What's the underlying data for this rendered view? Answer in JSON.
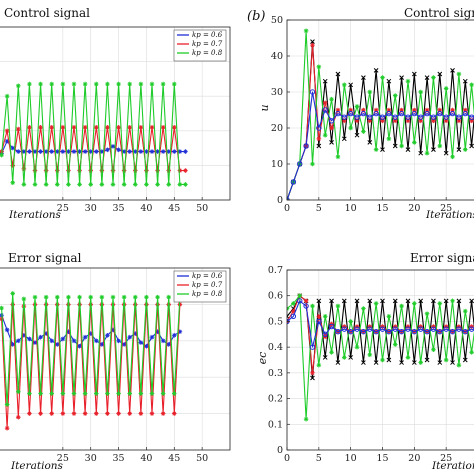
{
  "chart_data": [
    {
      "id": "top-left",
      "type": "line",
      "title": "Control signal",
      "xlabel": "Iterations",
      "ylabel": "",
      "xlim": [
        13,
        55
      ],
      "ylim": [
        0,
        1
      ],
      "xticks": [
        25,
        30,
        35,
        40,
        45,
        50
      ],
      "yticks": [],
      "grid": true,
      "legend": "top-right",
      "series": [
        {
          "name": "kp = 0.6",
          "color": "#1f2fd6",
          "marker": "star",
          "x": [
            14,
            15,
            16,
            17,
            18,
            19,
            20,
            21,
            22,
            23,
            24,
            25,
            26,
            27,
            28,
            29,
            30,
            31,
            32,
            33,
            34,
            35,
            36,
            37,
            38,
            39,
            40,
            41,
            42,
            43,
            44,
            45,
            46,
            47
          ],
          "y": [
            0.27,
            0.34,
            0.3,
            0.28,
            0.28,
            0.28,
            0.28,
            0.28,
            0.28,
            0.28,
            0.28,
            0.28,
            0.28,
            0.28,
            0.28,
            0.28,
            0.28,
            0.28,
            0.28,
            0.29,
            0.31,
            0.29,
            0.28,
            0.28,
            0.28,
            0.28,
            0.28,
            0.28,
            0.28,
            0.28,
            0.28,
            0.28,
            0.28,
            0.28
          ]
        },
        {
          "name": "kp = 0.7",
          "color": "#e8202a",
          "marker": "star",
          "x": [
            14,
            15,
            16,
            17,
            18,
            19,
            20,
            21,
            22,
            23,
            24,
            25,
            26,
            27,
            28,
            29,
            30,
            31,
            32,
            33,
            34,
            35,
            36,
            37,
            38,
            39,
            40,
            41,
            42,
            43,
            44,
            45,
            46,
            47
          ],
          "y": [
            0.28,
            0.4,
            0.2,
            0.41,
            0.18,
            0.42,
            0.17,
            0.42,
            0.17,
            0.42,
            0.17,
            0.42,
            0.17,
            0.42,
            0.17,
            0.42,
            0.17,
            0.42,
            0.17,
            0.42,
            0.17,
            0.42,
            0.17,
            0.42,
            0.17,
            0.42,
            0.17,
            0.42,
            0.17,
            0.42,
            0.17,
            0.42,
            0.17,
            0.17
          ]
        },
        {
          "name": "kp = 0.8",
          "color": "#1fcc2a",
          "marker": "star",
          "x": [
            14,
            15,
            16,
            17,
            18,
            19,
            20,
            21,
            22,
            23,
            24,
            25,
            26,
            27,
            28,
            29,
            30,
            31,
            32,
            33,
            34,
            35,
            36,
            37,
            38,
            39,
            40,
            41,
            42,
            43,
            44,
            45,
            46,
            47
          ],
          "y": [
            0.26,
            0.6,
            0.1,
            0.66,
            0.09,
            0.67,
            0.09,
            0.67,
            0.09,
            0.67,
            0.09,
            0.67,
            0.09,
            0.67,
            0.09,
            0.67,
            0.09,
            0.67,
            0.09,
            0.67,
            0.09,
            0.67,
            0.09,
            0.67,
            0.09,
            0.67,
            0.09,
            0.67,
            0.09,
            0.67,
            0.09,
            0.67,
            0.09,
            0.09
          ]
        }
      ]
    },
    {
      "id": "bottom-left",
      "type": "line",
      "title": "Error signal",
      "xlabel": "Iterations",
      "ylabel": "",
      "xlim": [
        13,
        55
      ],
      "ylim": [
        0,
        1
      ],
      "xticks": [
        25,
        30,
        35,
        40,
        45,
        50
      ],
      "yticks": [],
      "grid": true,
      "legend": "top-right",
      "series": [
        {
          "name": "kp = 0.6",
          "color": "#1f2fd6",
          "marker": "star",
          "x": [
            14,
            15,
            16,
            17,
            18,
            19,
            20,
            21,
            22,
            23,
            24,
            25,
            26,
            27,
            28,
            29,
            30,
            31,
            32,
            33,
            34,
            35,
            36,
            37,
            38,
            39,
            40,
            41,
            42,
            43,
            44,
            45,
            46
          ],
          "y": [
            0.74,
            0.66,
            0.58,
            0.6,
            0.63,
            0.61,
            0.59,
            0.62,
            0.64,
            0.6,
            0.58,
            0.61,
            0.65,
            0.6,
            0.57,
            0.62,
            0.64,
            0.6,
            0.58,
            0.63,
            0.66,
            0.6,
            0.58,
            0.62,
            0.64,
            0.59,
            0.57,
            0.62,
            0.65,
            0.6,
            0.58,
            0.63,
            0.65
          ]
        },
        {
          "name": "kp = 0.7",
          "color": "#e8202a",
          "marker": "star",
          "x": [
            14,
            15,
            16,
            17,
            18,
            19,
            20,
            21,
            22,
            23,
            24,
            25,
            26,
            27,
            28,
            29,
            30,
            31,
            32,
            33,
            34,
            35,
            36,
            37,
            38,
            39,
            40,
            41,
            42,
            43,
            44,
            45,
            46
          ],
          "y": [
            0.72,
            0.12,
            0.8,
            0.18,
            0.79,
            0.2,
            0.8,
            0.2,
            0.8,
            0.2,
            0.8,
            0.2,
            0.8,
            0.2,
            0.8,
            0.2,
            0.8,
            0.2,
            0.8,
            0.2,
            0.8,
            0.2,
            0.8,
            0.2,
            0.8,
            0.2,
            0.8,
            0.2,
            0.8,
            0.2,
            0.8,
            0.2,
            0.8
          ]
        },
        {
          "name": "kp = 0.8",
          "color": "#1fcc2a",
          "marker": "star",
          "x": [
            14,
            15,
            16,
            17,
            18,
            19,
            20,
            21,
            22,
            23,
            24,
            25,
            26,
            27,
            28,
            29,
            30,
            31,
            32,
            33,
            34,
            35,
            36,
            37,
            38,
            39,
            40,
            41,
            42,
            43,
            44,
            45,
            46
          ],
          "y": [
            0.78,
            0.25,
            0.86,
            0.32,
            0.83,
            0.31,
            0.84,
            0.31,
            0.84,
            0.31,
            0.84,
            0.31,
            0.84,
            0.31,
            0.84,
            0.31,
            0.84,
            0.31,
            0.84,
            0.31,
            0.84,
            0.31,
            0.84,
            0.31,
            0.84,
            0.31,
            0.84,
            0.31,
            0.84,
            0.31,
            0.84,
            0.31,
            0.84
          ]
        }
      ]
    },
    {
      "id": "top-right",
      "type": "line",
      "panel_label": "(b)",
      "title": "Control signal",
      "xlabel": "Iterations",
      "ylabel": "u",
      "xlim": [
        0,
        30
      ],
      "ylim": [
        0,
        50
      ],
      "xticks": [
        0,
        5,
        10,
        15,
        20,
        25
      ],
      "yticks": [
        0,
        10,
        20,
        30,
        40,
        50
      ],
      "grid": true,
      "series": [
        {
          "name": "",
          "color": "#000000",
          "marker": "cross",
          "x": [
            0,
            1,
            2,
            3,
            4,
            5,
            6,
            7,
            8,
            9,
            10,
            11,
            12,
            13,
            14,
            15,
            16,
            17,
            18,
            19,
            20,
            21,
            22,
            23,
            24,
            25,
            26,
            27,
            28,
            29,
            30
          ],
          "y": [
            0,
            5,
            10,
            15,
            44,
            15,
            33,
            16,
            35,
            17,
            32,
            18,
            34,
            16,
            36,
            14,
            33,
            15,
            34,
            14,
            35,
            13,
            34,
            14,
            35,
            13,
            36,
            14,
            33,
            15,
            34
          ]
        },
        {
          "name": "",
          "color": "#e8202a",
          "marker": "star",
          "x": [
            0,
            1,
            2,
            3,
            4,
            5,
            6,
            7,
            8,
            9,
            10,
            11,
            12,
            13,
            14,
            15,
            16,
            17,
            18,
            19,
            20,
            21,
            22,
            23,
            24,
            25,
            26,
            27,
            28,
            29,
            30
          ],
          "y": [
            0,
            5,
            10,
            15,
            43,
            17,
            27,
            20,
            25,
            22,
            25,
            22,
            25,
            22,
            25,
            22,
            25,
            22,
            25,
            22,
            25,
            22,
            25,
            22,
            25,
            22,
            25,
            22,
            25,
            22,
            25
          ]
        },
        {
          "name": "",
          "color": "#1fcc2a",
          "marker": "star",
          "x": [
            0,
            1,
            2,
            3,
            4,
            5,
            6,
            7,
            8,
            9,
            10,
            11,
            12,
            13,
            14,
            15,
            16,
            17,
            18,
            19,
            20,
            21,
            22,
            23,
            24,
            25,
            26,
            27,
            28,
            29,
            30
          ],
          "y": [
            0,
            5,
            10,
            47,
            10,
            37,
            18,
            28,
            12,
            32,
            20,
            26,
            19,
            30,
            14,
            34,
            17,
            29,
            15,
            33,
            16,
            30,
            13,
            34,
            15,
            31,
            12,
            35,
            14,
            32,
            13
          ]
        },
        {
          "name": "",
          "color": "#1f2fd6",
          "marker": "circle",
          "x": [
            0,
            1,
            2,
            3,
            4,
            5,
            6,
            7,
            8,
            9,
            10,
            11,
            12,
            13,
            14,
            15,
            16,
            17,
            18,
            19,
            20,
            21,
            22,
            23,
            24,
            25,
            26,
            27,
            28,
            29,
            30
          ],
          "y": [
            0,
            5,
            10,
            15,
            30,
            20,
            25,
            22,
            24,
            23,
            24,
            23,
            24,
            23,
            24,
            23,
            24,
            23,
            24,
            23,
            24,
            23,
            24,
            23,
            24,
            23,
            24,
            23,
            24,
            23,
            24
          ]
        }
      ]
    },
    {
      "id": "bottom-right",
      "type": "line",
      "title": "Error signal",
      "xlabel": "Iterations",
      "ylabel": "ec",
      "xlim": [
        0,
        30
      ],
      "ylim": [
        0,
        0.7
      ],
      "xticks": [
        0,
        5,
        10,
        15,
        20,
        25
      ],
      "yticks": [
        0,
        0.1,
        0.2,
        0.3,
        0.4,
        0.5,
        0.6,
        0.7
      ],
      "grid": true,
      "series": [
        {
          "name": "",
          "color": "#000000",
          "marker": "cross",
          "x": [
            0,
            1,
            2,
            3,
            4,
            5,
            6,
            7,
            8,
            9,
            10,
            11,
            12,
            13,
            14,
            15,
            16,
            17,
            18,
            19,
            20,
            21,
            22,
            23,
            24,
            25,
            26,
            27,
            28,
            29,
            30
          ],
          "y": [
            0.52,
            0.55,
            0.6,
            0.58,
            0.28,
            0.58,
            0.36,
            0.58,
            0.34,
            0.58,
            0.36,
            0.58,
            0.34,
            0.58,
            0.34,
            0.58,
            0.35,
            0.58,
            0.34,
            0.58,
            0.34,
            0.58,
            0.35,
            0.58,
            0.34,
            0.58,
            0.34,
            0.58,
            0.35,
            0.58,
            0.34
          ]
        },
        {
          "name": "",
          "color": "#e8202a",
          "marker": "star",
          "x": [
            0,
            1,
            2,
            3,
            4,
            5,
            6,
            7,
            8,
            9,
            10,
            11,
            12,
            13,
            14,
            15,
            16,
            17,
            18,
            19,
            20,
            21,
            22,
            23,
            24,
            25,
            26,
            27,
            28,
            29,
            30
          ],
          "y": [
            0.5,
            0.54,
            0.6,
            0.58,
            0.3,
            0.52,
            0.44,
            0.49,
            0.46,
            0.48,
            0.46,
            0.48,
            0.46,
            0.48,
            0.46,
            0.48,
            0.46,
            0.48,
            0.46,
            0.48,
            0.46,
            0.48,
            0.46,
            0.48,
            0.46,
            0.48,
            0.46,
            0.48,
            0.46,
            0.48,
            0.46
          ]
        },
        {
          "name": "",
          "color": "#1fcc2a",
          "marker": "star",
          "x": [
            0,
            1,
            2,
            3,
            4,
            5,
            6,
            7,
            8,
            9,
            10,
            11,
            12,
            13,
            14,
            15,
            16,
            17,
            18,
            19,
            20,
            21,
            22,
            23,
            24,
            25,
            26,
            27,
            28,
            29,
            30
          ],
          "y": [
            0.55,
            0.57,
            0.6,
            0.12,
            0.56,
            0.33,
            0.52,
            0.38,
            0.56,
            0.36,
            0.5,
            0.4,
            0.55,
            0.37,
            0.57,
            0.35,
            0.52,
            0.41,
            0.56,
            0.36,
            0.57,
            0.34,
            0.53,
            0.39,
            0.57,
            0.35,
            0.58,
            0.33,
            0.54,
            0.38,
            0.56
          ]
        },
        {
          "name": "",
          "color": "#1f2fd6",
          "marker": "circle",
          "x": [
            0,
            1,
            2,
            3,
            4,
            5,
            6,
            7,
            8,
            9,
            10,
            11,
            12,
            13,
            14,
            15,
            16,
            17,
            18,
            19,
            20,
            21,
            22,
            23,
            24,
            25,
            26,
            27,
            28,
            29,
            30
          ],
          "y": [
            0.5,
            0.52,
            0.58,
            0.56,
            0.4,
            0.5,
            0.45,
            0.48,
            0.46,
            0.47,
            0.46,
            0.47,
            0.46,
            0.47,
            0.46,
            0.47,
            0.46,
            0.47,
            0.46,
            0.47,
            0.46,
            0.47,
            0.46,
            0.47,
            0.46,
            0.47,
            0.46,
            0.47,
            0.46,
            0.47,
            0.46
          ]
        }
      ]
    }
  ]
}
